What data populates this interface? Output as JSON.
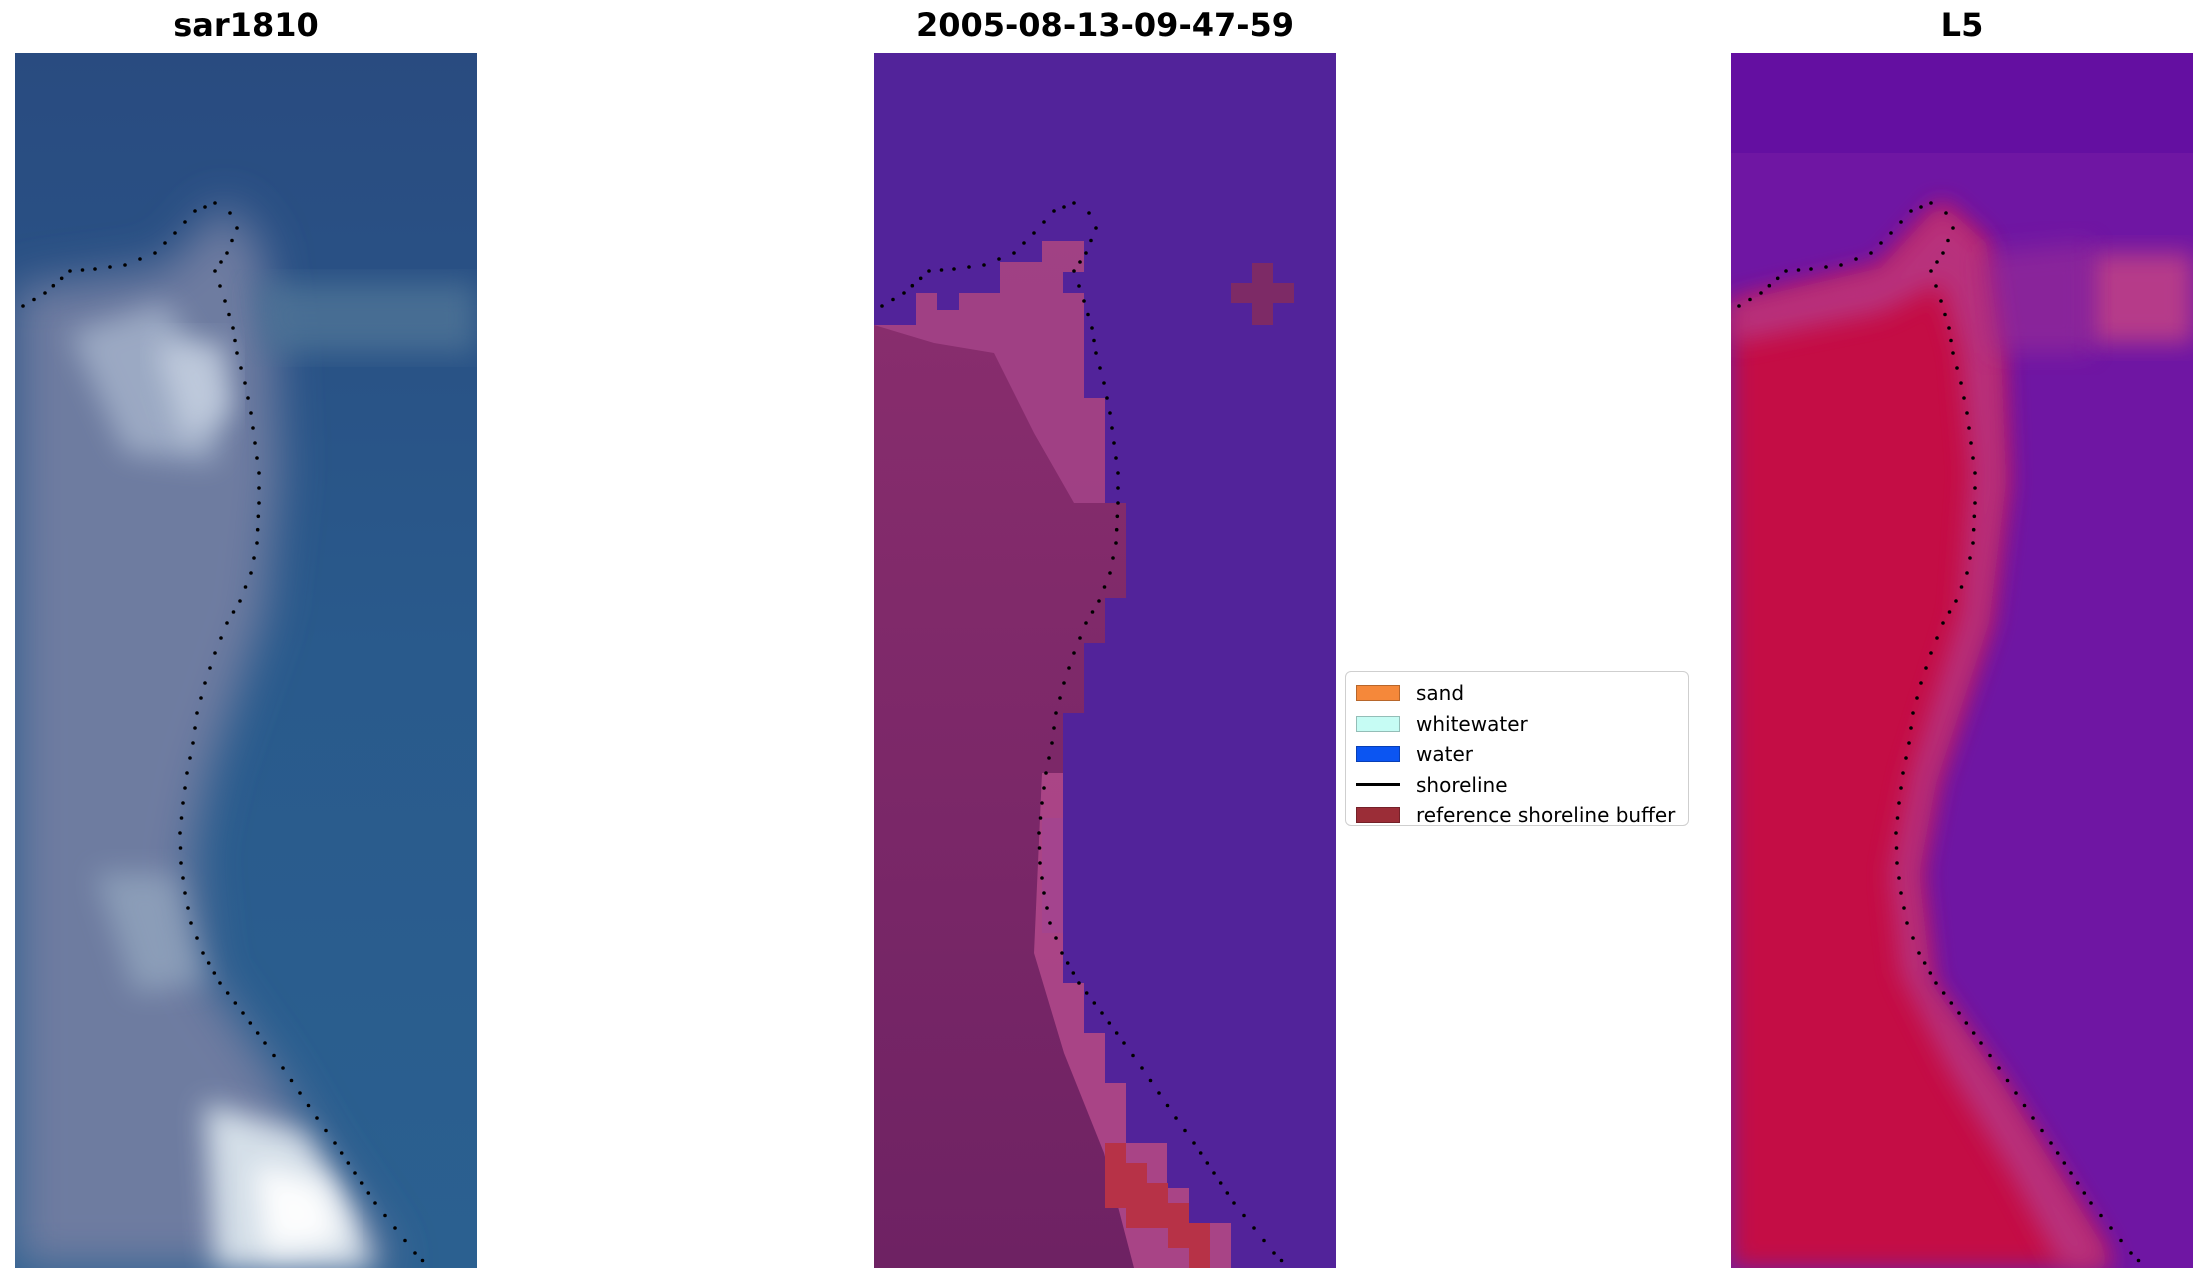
{
  "titles": {
    "left": "sar1810",
    "center": "2005-08-13-09-47-59",
    "right": "L5"
  },
  "legend": [
    {
      "label": "sand",
      "kind": "patch",
      "color": "#f5883a"
    },
    {
      "label": "whitewater",
      "kind": "patch",
      "color": "#c6fcf4"
    },
    {
      "label": "water",
      "kind": "patch",
      "color": "#0b55f2"
    },
    {
      "label": "shoreline",
      "kind": "line",
      "color": "#000000"
    },
    {
      "label": "reference shoreline buffer",
      "kind": "patch",
      "color": "#9b2d37"
    }
  ],
  "colors": {
    "rgb_water": "#2a5185",
    "rgb_land": "#6f7ba0",
    "rgb_surf": "#e9f2f5",
    "class_water": "#52239a",
    "class_land": "#7d2a66",
    "class_buffer": "#b73247",
    "mndwi_water": "#6e12a2",
    "mndwi_land": "#c1093e"
  }
}
